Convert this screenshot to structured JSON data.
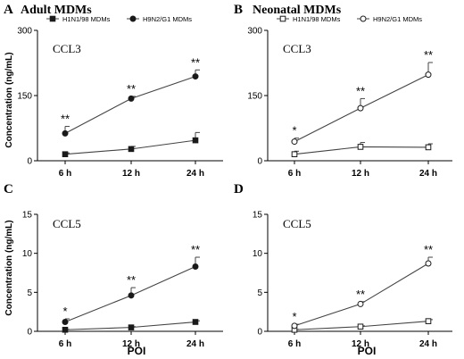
{
  "figure": {
    "y_axis_title": "Concentration (ng/mL)",
    "x_axis_title": "POI"
  },
  "chart_data": [
    {
      "type": "line",
      "panel_letter": "A",
      "group_title": "Adult MDMs",
      "title": "CCL3",
      "categories": [
        "6 h",
        "12 h",
        "24 h"
      ],
      "ylim": [
        0,
        300
      ],
      "yticks": [
        "0",
        "150",
        "300"
      ],
      "legend": "top",
      "series": [
        {
          "name": "H1N1/98 MDMs",
          "marker": "filled-square",
          "values": [
            15,
            27,
            47
          ],
          "errors": [
            3,
            6,
            18
          ]
        },
        {
          "name": "H9N2/G1 MDMs",
          "marker": "filled-circle",
          "values": [
            63,
            143,
            194
          ],
          "errors": [
            16,
            5,
            15
          ]
        }
      ],
      "annotations": [
        {
          "category": "6 h",
          "series": 1,
          "text": "**"
        },
        {
          "category": "12 h",
          "series": 1,
          "text": "**"
        },
        {
          "category": "24 h",
          "series": 1,
          "text": "**"
        }
      ]
    },
    {
      "type": "line",
      "panel_letter": "B",
      "group_title": "Neonatal MDMs",
      "title": "CCL3",
      "categories": [
        "6 h",
        "12 h",
        "24 h"
      ],
      "ylim": [
        0,
        300
      ],
      "yticks": [
        "0",
        "150",
        "300"
      ],
      "legend": "top",
      "series": [
        {
          "name": "H1N1/98 MDMs",
          "marker": "open-square",
          "values": [
            15,
            32,
            31
          ],
          "errors": [
            7,
            10,
            8
          ]
        },
        {
          "name": "H9N2/G1 MDMs",
          "marker": "open-circle",
          "values": [
            44,
            121,
            198
          ],
          "errors": [
            8,
            22,
            28
          ]
        }
      ],
      "annotations": [
        {
          "category": "6 h",
          "series": 1,
          "text": "*"
        },
        {
          "category": "12 h",
          "series": 1,
          "text": "**"
        },
        {
          "category": "24 h",
          "series": 1,
          "text": "**"
        }
      ]
    },
    {
      "type": "line",
      "panel_letter": "C",
      "group_title": "",
      "title": "CCL5",
      "categories": [
        "6 h",
        "12 h",
        "24 h"
      ],
      "ylim": [
        0,
        15
      ],
      "yticks": [
        "0",
        "5",
        "10",
        "15"
      ],
      "series": [
        {
          "name": "H1N1/98 MDMs",
          "marker": "filled-square",
          "values": [
            0.2,
            0.5,
            1.2
          ],
          "errors": [
            0.05,
            0.1,
            0.15
          ]
        },
        {
          "name": "H9N2/G1 MDMs",
          "marker": "filled-circle",
          "values": [
            1.2,
            4.6,
            8.3
          ],
          "errors": [
            0.4,
            1.0,
            1.2
          ]
        }
      ],
      "annotations": [
        {
          "category": "6 h",
          "series": 1,
          "text": "*"
        },
        {
          "category": "12 h",
          "series": 1,
          "text": "**"
        },
        {
          "category": "24 h",
          "series": 1,
          "text": "**"
        }
      ]
    },
    {
      "type": "line",
      "panel_letter": "D",
      "group_title": "",
      "title": "CCL5",
      "categories": [
        "6 h",
        "12 h",
        "24 h"
      ],
      "ylim": [
        0,
        15
      ],
      "yticks": [
        "0",
        "5",
        "10",
        "15"
      ],
      "series": [
        {
          "name": "H1N1/98 MDMs",
          "marker": "open-square",
          "values": [
            0.2,
            0.6,
            1.3
          ],
          "errors": [
            0.05,
            0.1,
            0.2
          ]
        },
        {
          "name": "H9N2/G1 MDMs",
          "marker": "open-circle",
          "values": [
            0.7,
            3.5,
            8.7
          ],
          "errors": [
            0.2,
            0.3,
            0.8
          ]
        }
      ],
      "annotations": [
        {
          "category": "6 h",
          "series": 1,
          "text": "*"
        },
        {
          "category": "12 h",
          "series": 1,
          "text": "**"
        },
        {
          "category": "24 h",
          "series": 1,
          "text": "**"
        }
      ]
    }
  ]
}
